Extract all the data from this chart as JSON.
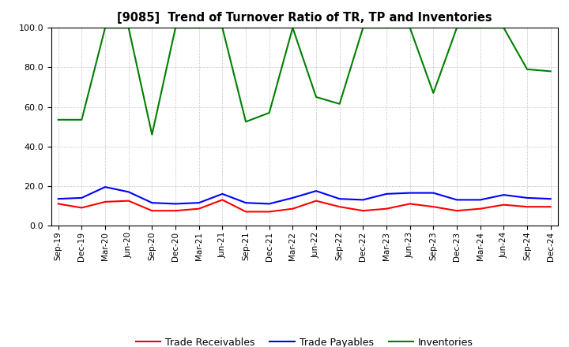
{
  "title": "[9085]  Trend of Turnover Ratio of TR, TP and Inventories",
  "labels": [
    "Sep-19",
    "Dec-19",
    "Mar-20",
    "Jun-20",
    "Sep-20",
    "Dec-20",
    "Mar-21",
    "Jun-21",
    "Sep-21",
    "Dec-21",
    "Mar-22",
    "Jun-22",
    "Sep-22",
    "Dec-22",
    "Mar-23",
    "Jun-23",
    "Sep-23",
    "Dec-23",
    "Mar-24",
    "Jun-24",
    "Sep-24",
    "Dec-24"
  ],
  "trade_receivables": [
    11.0,
    9.0,
    12.0,
    12.5,
    7.5,
    7.5,
    8.5,
    13.0,
    7.0,
    7.0,
    8.5,
    12.5,
    9.5,
    7.5,
    8.5,
    11.0,
    9.5,
    7.5,
    8.5,
    10.5,
    9.5,
    9.5
  ],
  "trade_payables": [
    13.5,
    14.0,
    19.5,
    17.0,
    11.5,
    11.0,
    11.5,
    16.0,
    11.5,
    11.0,
    14.0,
    17.5,
    13.5,
    13.0,
    16.0,
    16.5,
    16.5,
    13.0,
    13.0,
    15.5,
    14.0,
    13.5
  ],
  "inventories": [
    53.5,
    53.5,
    100.0,
    100.0,
    46.0,
    100.0,
    100.0,
    100.0,
    52.5,
    57.0,
    100.0,
    65.0,
    61.5,
    100.0,
    100.0,
    100.0,
    67.0,
    100.0,
    100.0,
    100.0,
    79.0,
    78.0
  ],
  "ylim": [
    0.0,
    100.0
  ],
  "yticks": [
    0.0,
    20.0,
    40.0,
    60.0,
    80.0,
    100.0
  ],
  "color_tr": "#ff0000",
  "color_tp": "#0000ff",
  "color_inv": "#008000",
  "legend_labels": [
    "Trade Receivables",
    "Trade Payables",
    "Inventories"
  ],
  "background_color": "#ffffff",
  "grid_color": "#888888"
}
